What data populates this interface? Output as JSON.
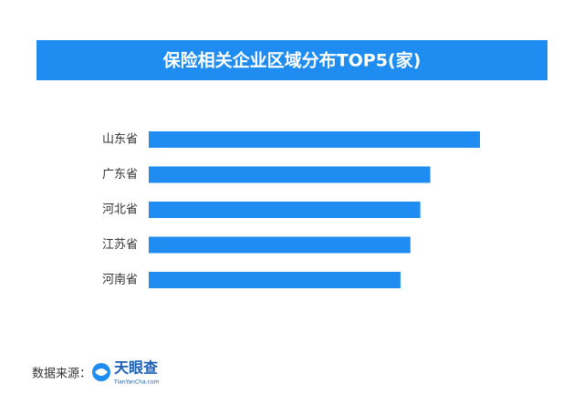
{
  "chart_data": {
    "type": "bar",
    "orientation": "horizontal",
    "title": "保险相关企业区域分布TOP5(家)",
    "categories": [
      "山东省",
      "广东省",
      "河北省",
      "江苏省",
      "河南省"
    ],
    "values": [
      100,
      85,
      82,
      79,
      76
    ],
    "color": "#1e8cf0"
  },
  "footer": {
    "source_label": "数据来源：",
    "brand": "天眼查",
    "brand_site": "TianYanCha.com"
  }
}
